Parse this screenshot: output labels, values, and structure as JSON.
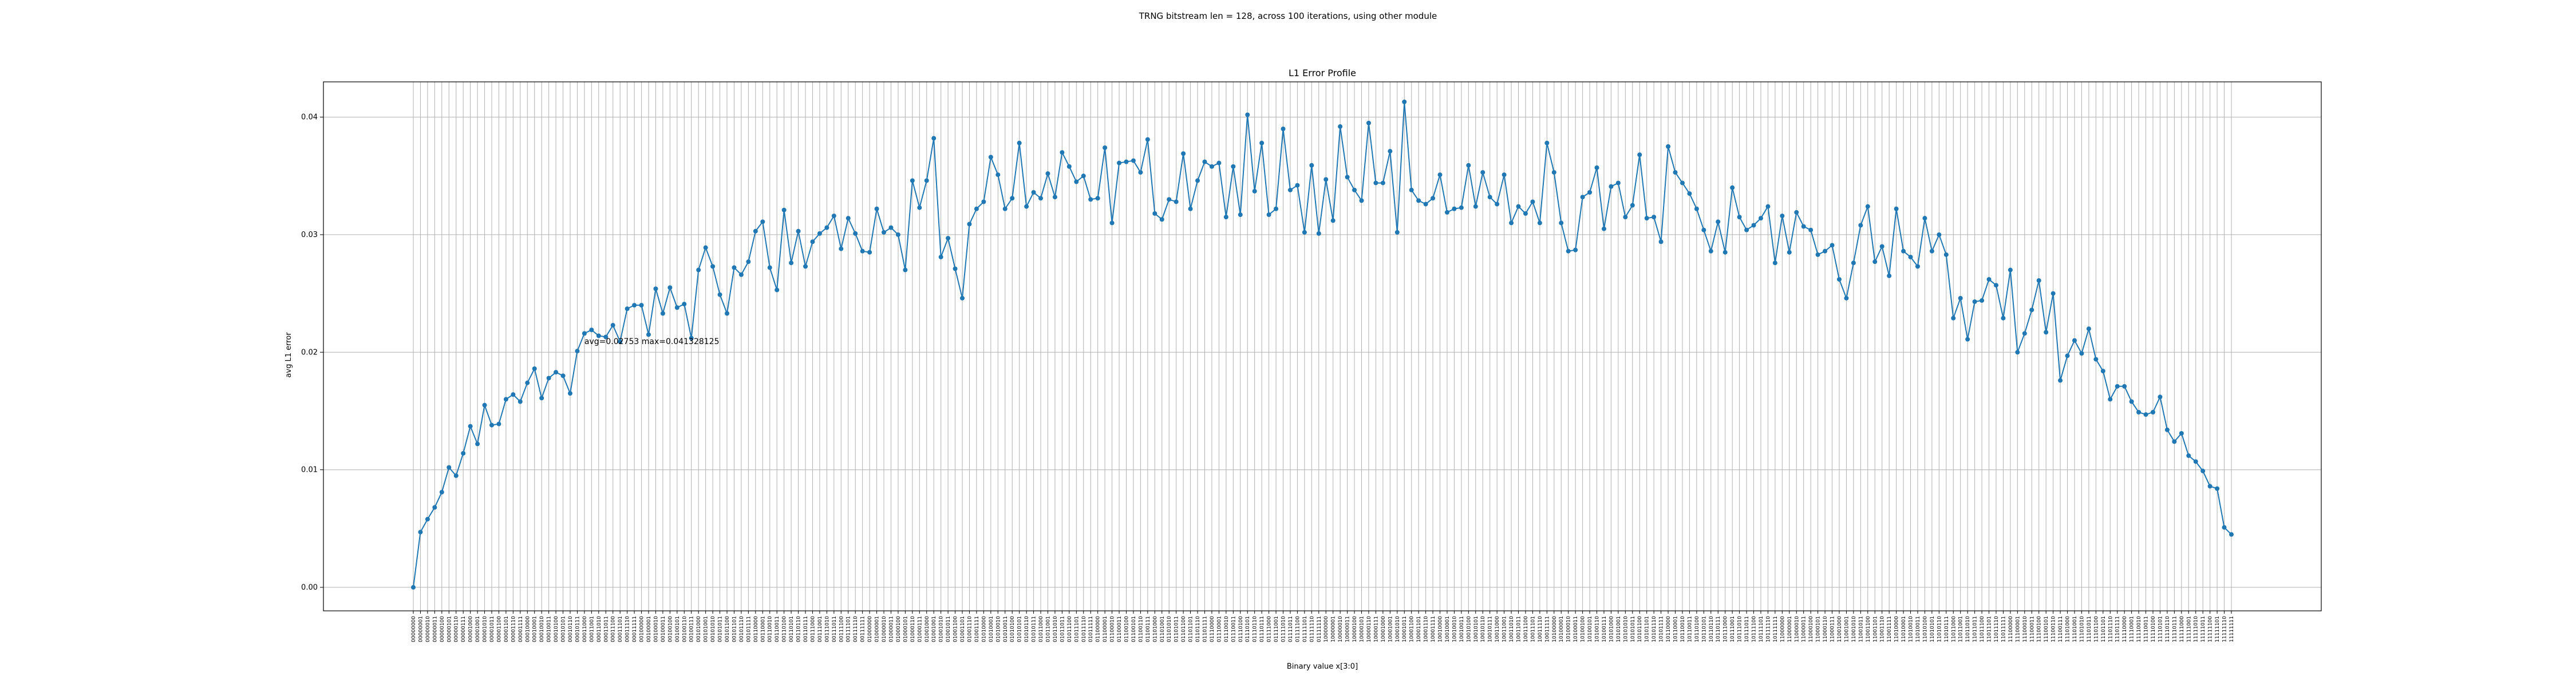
{
  "figure": {
    "suptitle": "TRNG bitstream len = 128, across 100 iterations, using other module",
    "colors": {
      "series": "#1f77b4",
      "grid": "#b0b0b0",
      "axes": "#000000"
    }
  },
  "chart_data": {
    "type": "line",
    "title": "L1 Error Profile",
    "xlabel": "Binary value x[3:0]",
    "ylabel": "avg L1 error",
    "ylim": [
      -0.002,
      0.043
    ],
    "yticks": [
      0.0,
      0.01,
      0.02,
      0.03,
      0.04
    ],
    "ytick_labels": [
      "0.00",
      "0.01",
      "0.02",
      "0.03",
      "0.04"
    ],
    "grid": true,
    "marker": "circle",
    "categories": [
      "00000000",
      "00000001",
      "00000010",
      "00000011",
      "00000100",
      "00000101",
      "00000110",
      "00000111",
      "00001000",
      "00001001",
      "00001010",
      "00001011",
      "00001100",
      "00001101",
      "00001110",
      "00001111",
      "00010000",
      "00010001",
      "00010010",
      "00010011",
      "00010100",
      "00010101",
      "00010110",
      "00010111",
      "00011000",
      "00011001",
      "00011010",
      "00011011",
      "00011100",
      "00011101",
      "00011110",
      "00011111",
      "00100000",
      "00100001",
      "00100010",
      "00100011",
      "00100100",
      "00100101",
      "00100110",
      "00100111",
      "00101000",
      "00101001",
      "00101010",
      "00101011",
      "00101100",
      "00101101",
      "00101110",
      "00101111",
      "00110000",
      "00110001",
      "00110010",
      "00110011",
      "00110100",
      "00110101",
      "00110110",
      "00110111",
      "00111000",
      "00111001",
      "00111010",
      "00111011",
      "00111100",
      "00111101",
      "00111110",
      "00111111",
      "01000000",
      "01000001",
      "01000010",
      "01000011",
      "01000100",
      "01000101",
      "01000110",
      "01000111",
      "01001000",
      "01001001",
      "01001010",
      "01001011",
      "01001100",
      "01001101",
      "01001110",
      "01001111",
      "01010000",
      "01010001",
      "01010010",
      "01010011",
      "01010100",
      "01010101",
      "01010110",
      "01010111",
      "01011000",
      "01011001",
      "01011010",
      "01011011",
      "01011100",
      "01011101",
      "01011110",
      "01011111",
      "01100000",
      "01100001",
      "01100010",
      "01100011",
      "01100100",
      "01100101",
      "01100110",
      "01100111",
      "01101000",
      "01101001",
      "01101010",
      "01101011",
      "01101100",
      "01101101",
      "01101110",
      "01101111",
      "01110000",
      "01110001",
      "01110010",
      "01110011",
      "01110100",
      "01110101",
      "01110110",
      "01110111",
      "01111000",
      "01111001",
      "01111010",
      "01111011",
      "01111100",
      "01111101",
      "01111110",
      "01111111",
      "10000000",
      "10000001",
      "10000010",
      "10000011",
      "10000100",
      "10000101",
      "10000110",
      "10000111",
      "10001000",
      "10001001",
      "10001010",
      "10001011",
      "10001100",
      "10001101",
      "10001110",
      "10001111",
      "10010000",
      "10010001",
      "10010010",
      "10010011",
      "10010100",
      "10010101",
      "10010110",
      "10010111",
      "10011000",
      "10011001",
      "10011010",
      "10011011",
      "10011100",
      "10011101",
      "10011110",
      "10011111",
      "10100000",
      "10100001",
      "10100010",
      "10100011",
      "10100100",
      "10100101",
      "10100110",
      "10100111",
      "10101000",
      "10101001",
      "10101010",
      "10101011",
      "10101100",
      "10101101",
      "10101110",
      "10101111",
      "10110000",
      "10110001",
      "10110010",
      "10110011",
      "10110100",
      "10110101",
      "10110110",
      "10110111",
      "10111000",
      "10111001",
      "10111010",
      "10111011",
      "10111100",
      "10111101",
      "10111110",
      "10111111",
      "11000000",
      "11000001",
      "11000010",
      "11000011",
      "11000100",
      "11000101",
      "11000110",
      "11000111",
      "11001000",
      "11001001",
      "11001010",
      "11001011",
      "11001100",
      "11001101",
      "11001110",
      "11001111",
      "11010000",
      "11010001",
      "11010010",
      "11010011",
      "11010100",
      "11010101",
      "11010110",
      "11010111",
      "11011000",
      "11011001",
      "11011010",
      "11011011",
      "11011100",
      "11011101",
      "11011110",
      "11011111",
      "11100000",
      "11100001",
      "11100010",
      "11100011",
      "11100100",
      "11100101",
      "11100110",
      "11100111",
      "11101000",
      "11101001",
      "11101010",
      "11101011",
      "11101100",
      "11101101",
      "11101110",
      "11101111",
      "11110000",
      "11110001",
      "11110010",
      "11110011",
      "11110100",
      "11110101",
      "11110110",
      "11110111",
      "11111000",
      "11111001",
      "11111010",
      "11111011",
      "11111100",
      "11111101",
      "11111110",
      "11111111"
    ],
    "values": [
      0.0,
      0.0047,
      0.0058,
      0.0068,
      0.0081,
      0.0102,
      0.0095,
      0.0114,
      0.0137,
      0.0122,
      0.0155,
      0.0138,
      0.0139,
      0.016,
      0.0164,
      0.0158,
      0.0174,
      0.0186,
      0.0161,
      0.0178,
      0.0183,
      0.018,
      0.0165,
      0.0201,
      0.0216,
      0.0219,
      0.0214,
      0.0213,
      0.0223,
      0.0209,
      0.0237,
      0.024,
      0.024,
      0.0215,
      0.0254,
      0.0233,
      0.0255,
      0.0238,
      0.0241,
      0.0212,
      0.027,
      0.0289,
      0.0273,
      0.0249,
      0.0233,
      0.0272,
      0.0266,
      0.0277,
      0.0303,
      0.0311,
      0.0272,
      0.0253,
      0.0321,
      0.0276,
      0.0303,
      0.0273,
      0.0294,
      0.0301,
      0.0306,
      0.0316,
      0.0288,
      0.0314,
      0.0301,
      0.0286,
      0.0285,
      0.0322,
      0.0302,
      0.0306,
      0.03,
      0.027,
      0.0346,
      0.0323,
      0.0346,
      0.0382,
      0.0281,
      0.0297,
      0.0271,
      0.0246,
      0.0309,
      0.0322,
      0.0328,
      0.0366,
      0.0351,
      0.0322,
      0.0331,
      0.0378,
      0.0324,
      0.0336,
      0.0331,
      0.0352,
      0.0332,
      0.037,
      0.0358,
      0.0345,
      0.035,
      0.033,
      0.0331,
      0.0374,
      0.031,
      0.0361,
      0.0362,
      0.0363,
      0.0353,
      0.0381,
      0.0318,
      0.0313,
      0.033,
      0.0328,
      0.0369,
      0.0322,
      0.0346,
      0.0362,
      0.0358,
      0.0361,
      0.0315,
      0.0358,
      0.0317,
      0.0402,
      0.0337,
      0.0378,
      0.0317,
      0.0322,
      0.039,
      0.0338,
      0.0342,
      0.0302,
      0.0359,
      0.0301,
      0.0347,
      0.0312,
      0.0392,
      0.0349,
      0.0338,
      0.0329,
      0.0395,
      0.0344,
      0.0344,
      0.0371,
      0.0302,
      0.0413,
      0.0338,
      0.0329,
      0.0326,
      0.0331,
      0.0351,
      0.0319,
      0.0322,
      0.0323,
      0.0359,
      0.0324,
      0.0353,
      0.0332,
      0.0326,
      0.0351,
      0.031,
      0.0324,
      0.0318,
      0.0328,
      0.031,
      0.0378,
      0.0353,
      0.031,
      0.0286,
      0.0287,
      0.0332,
      0.0336,
      0.0357,
      0.0305,
      0.0341,
      0.0344,
      0.0315,
      0.0325,
      0.0368,
      0.0314,
      0.0315,
      0.0294,
      0.0375,
      0.0353,
      0.0344,
      0.0335,
      0.0322,
      0.0304,
      0.0286,
      0.0311,
      0.0285,
      0.034,
      0.0315,
      0.0304,
      0.0308,
      0.0314,
      0.0324,
      0.0276,
      0.0316,
      0.0285,
      0.0319,
      0.0307,
      0.0304,
      0.0283,
      0.0286,
      0.0291,
      0.0262,
      0.0246,
      0.0276,
      0.0308,
      0.0324,
      0.0277,
      0.029,
      0.0265,
      0.0322,
      0.0286,
      0.0281,
      0.0273,
      0.0314,
      0.0286,
      0.03,
      0.0283,
      0.0229,
      0.0246,
      0.0211,
      0.0243,
      0.0244,
      0.0262,
      0.0257,
      0.0229,
      0.027,
      0.02,
      0.0216,
      0.0236,
      0.0261,
      0.0217,
      0.025,
      0.0176,
      0.0197,
      0.021,
      0.0199,
      0.022,
      0.0194,
      0.0184,
      0.016,
      0.0171,
      0.0171,
      0.0158,
      0.0149,
      0.0147,
      0.0149,
      0.0162,
      0.0134,
      0.0124,
      0.0131,
      0.0112,
      0.0107,
      0.0099,
      0.0086,
      0.0084,
      0.0051,
      0.0045
    ],
    "annotation": {
      "text": "avg=0.02753  max=0.041328125",
      "x": "00011000",
      "y": 0.0207
    }
  }
}
